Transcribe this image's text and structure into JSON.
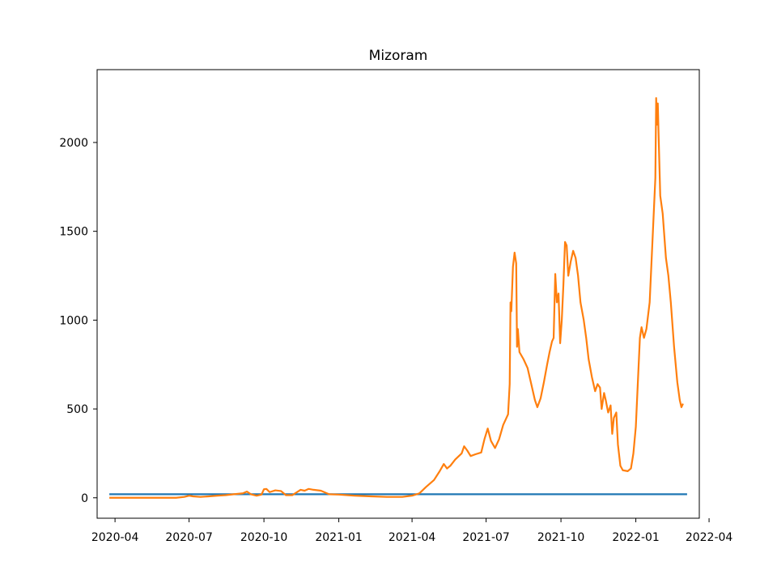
{
  "chart_data": {
    "type": "line",
    "title": "Mizoram",
    "xlabel": "",
    "ylabel": "",
    "x_range": [
      "2020-03-10",
      "2022-03-20"
    ],
    "ylim": [
      -115,
      2410
    ],
    "x_ticks": [
      "2020-04",
      "2020-07",
      "2020-10",
      "2021-01",
      "2021-04",
      "2021-07",
      "2021-10",
      "2022-01",
      "2022-04"
    ],
    "x_tick_dates": [
      "2020-04-01",
      "2020-07-01",
      "2020-10-01",
      "2021-01-01",
      "2021-04-01",
      "2021-07-01",
      "2021-10-01",
      "2022-01-01",
      "2022-04-01"
    ],
    "y_ticks": [
      0,
      500,
      1000,
      1500,
      2000
    ],
    "grid": false,
    "series": [
      {
        "color": "#1f77b4",
        "points": [
          [
            "2020-03-25",
            20
          ],
          [
            "2022-03-05",
            20
          ]
        ]
      },
      {
        "color": "#ff7f0e",
        "points": [
          [
            "2020-03-25",
            0
          ],
          [
            "2020-04-15",
            0
          ],
          [
            "2020-05-15",
            0
          ],
          [
            "2020-06-15",
            0
          ],
          [
            "2020-06-25",
            5
          ],
          [
            "2020-07-01",
            12
          ],
          [
            "2020-07-06",
            8
          ],
          [
            "2020-07-15",
            5
          ],
          [
            "2020-07-25",
            8
          ],
          [
            "2020-08-05",
            12
          ],
          [
            "2020-08-15",
            15
          ],
          [
            "2020-08-25",
            20
          ],
          [
            "2020-09-05",
            25
          ],
          [
            "2020-09-10",
            35
          ],
          [
            "2020-09-15",
            20
          ],
          [
            "2020-09-22",
            12
          ],
          [
            "2020-09-28",
            18
          ],
          [
            "2020-10-01",
            48
          ],
          [
            "2020-10-04",
            50
          ],
          [
            "2020-10-08",
            32
          ],
          [
            "2020-10-15",
            42
          ],
          [
            "2020-10-22",
            38
          ],
          [
            "2020-10-28",
            15
          ],
          [
            "2020-11-05",
            15
          ],
          [
            "2020-11-15",
            45
          ],
          [
            "2020-11-20",
            40
          ],
          [
            "2020-11-25",
            50
          ],
          [
            "2020-12-01",
            45
          ],
          [
            "2020-12-10",
            40
          ],
          [
            "2020-12-20",
            20
          ],
          [
            "2021-01-01",
            18
          ],
          [
            "2021-01-20",
            12
          ],
          [
            "2021-02-10",
            8
          ],
          [
            "2021-03-01",
            5
          ],
          [
            "2021-03-20",
            5
          ],
          [
            "2021-04-01",
            12
          ],
          [
            "2021-04-10",
            25
          ],
          [
            "2021-04-18",
            60
          ],
          [
            "2021-04-28",
            100
          ],
          [
            "2021-05-05",
            150
          ],
          [
            "2021-05-10",
            190
          ],
          [
            "2021-05-14",
            165
          ],
          [
            "2021-05-18",
            180
          ],
          [
            "2021-05-24",
            215
          ],
          [
            "2021-06-01",
            250
          ],
          [
            "2021-06-04",
            290
          ],
          [
            "2021-06-08",
            265
          ],
          [
            "2021-06-12",
            235
          ],
          [
            "2021-06-18",
            245
          ],
          [
            "2021-06-25",
            255
          ],
          [
            "2021-06-29",
            330
          ],
          [
            "2021-07-03",
            390
          ],
          [
            "2021-07-07",
            320
          ],
          [
            "2021-07-12",
            280
          ],
          [
            "2021-07-17",
            330
          ],
          [
            "2021-07-22",
            410
          ],
          [
            "2021-07-28",
            470
          ],
          [
            "2021-07-30",
            640
          ],
          [
            "2021-07-31",
            1100
          ],
          [
            "2021-08-01",
            1050
          ],
          [
            "2021-08-03",
            1300
          ],
          [
            "2021-08-05",
            1380
          ],
          [
            "2021-08-07",
            1320
          ],
          [
            "2021-08-08",
            850
          ],
          [
            "2021-08-09",
            950
          ],
          [
            "2021-08-11",
            820
          ],
          [
            "2021-08-16",
            780
          ],
          [
            "2021-08-21",
            730
          ],
          [
            "2021-08-25",
            650
          ],
          [
            "2021-08-30",
            550
          ],
          [
            "2021-09-02",
            510
          ],
          [
            "2021-09-06",
            560
          ],
          [
            "2021-09-10",
            650
          ],
          [
            "2021-09-14",
            750
          ],
          [
            "2021-09-17",
            820
          ],
          [
            "2021-09-20",
            880
          ],
          [
            "2021-09-22",
            900
          ],
          [
            "2021-09-24",
            1260
          ],
          [
            "2021-09-26",
            1100
          ],
          [
            "2021-09-28",
            1150
          ],
          [
            "2021-09-30",
            870
          ],
          [
            "2021-10-02",
            1000
          ],
          [
            "2021-10-04",
            1200
          ],
          [
            "2021-10-06",
            1440
          ],
          [
            "2021-10-08",
            1420
          ],
          [
            "2021-10-10",
            1250
          ],
          [
            "2021-10-13",
            1330
          ],
          [
            "2021-10-16",
            1390
          ],
          [
            "2021-10-19",
            1350
          ],
          [
            "2021-10-22",
            1250
          ],
          [
            "2021-10-25",
            1100
          ],
          [
            "2021-10-29",
            1000
          ],
          [
            "2021-11-01",
            900
          ],
          [
            "2021-11-04",
            780
          ],
          [
            "2021-11-08",
            680
          ],
          [
            "2021-11-12",
            600
          ],
          [
            "2021-11-15",
            640
          ],
          [
            "2021-11-18",
            620
          ],
          [
            "2021-11-20",
            500
          ],
          [
            "2021-11-23",
            590
          ],
          [
            "2021-11-25",
            550
          ],
          [
            "2021-11-28",
            480
          ],
          [
            "2021-12-01",
            520
          ],
          [
            "2021-12-03",
            360
          ],
          [
            "2021-12-05",
            450
          ],
          [
            "2021-12-08",
            480
          ],
          [
            "2021-12-10",
            300
          ],
          [
            "2021-12-13",
            180
          ],
          [
            "2021-12-16",
            155
          ],
          [
            "2021-12-22",
            150
          ],
          [
            "2021-12-26",
            165
          ],
          [
            "2021-12-29",
            250
          ],
          [
            "2022-01-01",
            400
          ],
          [
            "2022-01-04",
            700
          ],
          [
            "2022-01-06",
            900
          ],
          [
            "2022-01-08",
            960
          ],
          [
            "2022-01-11",
            900
          ],
          [
            "2022-01-14",
            950
          ],
          [
            "2022-01-18",
            1100
          ],
          [
            "2022-01-22",
            1500
          ],
          [
            "2022-01-25",
            1800
          ],
          [
            "2022-01-26",
            2250
          ],
          [
            "2022-01-27",
            2100
          ],
          [
            "2022-01-28",
            2220
          ],
          [
            "2022-01-29",
            2040
          ],
          [
            "2022-01-31",
            1700
          ],
          [
            "2022-02-03",
            1600
          ],
          [
            "2022-02-07",
            1350
          ],
          [
            "2022-02-10",
            1250
          ],
          [
            "2022-02-13",
            1100
          ],
          [
            "2022-02-17",
            850
          ],
          [
            "2022-02-21",
            650
          ],
          [
            "2022-02-24",
            550
          ],
          [
            "2022-02-26",
            510
          ],
          [
            "2022-02-28",
            530
          ]
        ]
      }
    ]
  }
}
